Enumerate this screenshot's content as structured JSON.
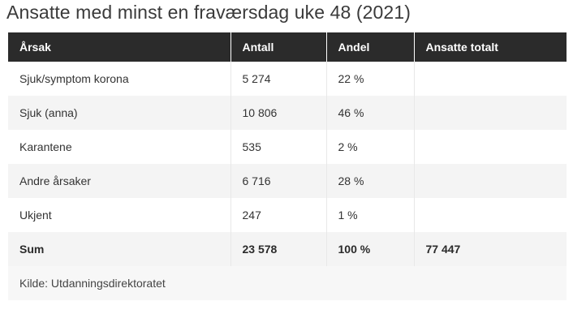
{
  "title": "Ansatte med minst en fraværsdag uke 48 (2021)",
  "headers": [
    "Årsak",
    "Antall",
    "Andel",
    "Ansatte totalt"
  ],
  "rows": [
    [
      "Sjuk/symptom korona",
      "5 274",
      "22 %",
      ""
    ],
    [
      "Sjuk (anna)",
      "10 806",
      "46 %",
      ""
    ],
    [
      "Karantene",
      "535",
      "2 %",
      ""
    ],
    [
      "Andre årsaker",
      "6 716",
      "28 %",
      ""
    ],
    [
      "Ukjent",
      "247",
      "1 %",
      ""
    ]
  ],
  "sum": [
    "Sum",
    "23 578",
    "100 %",
    "77 447"
  ],
  "source": "Kilde: Utdanningsdirektoratet"
}
